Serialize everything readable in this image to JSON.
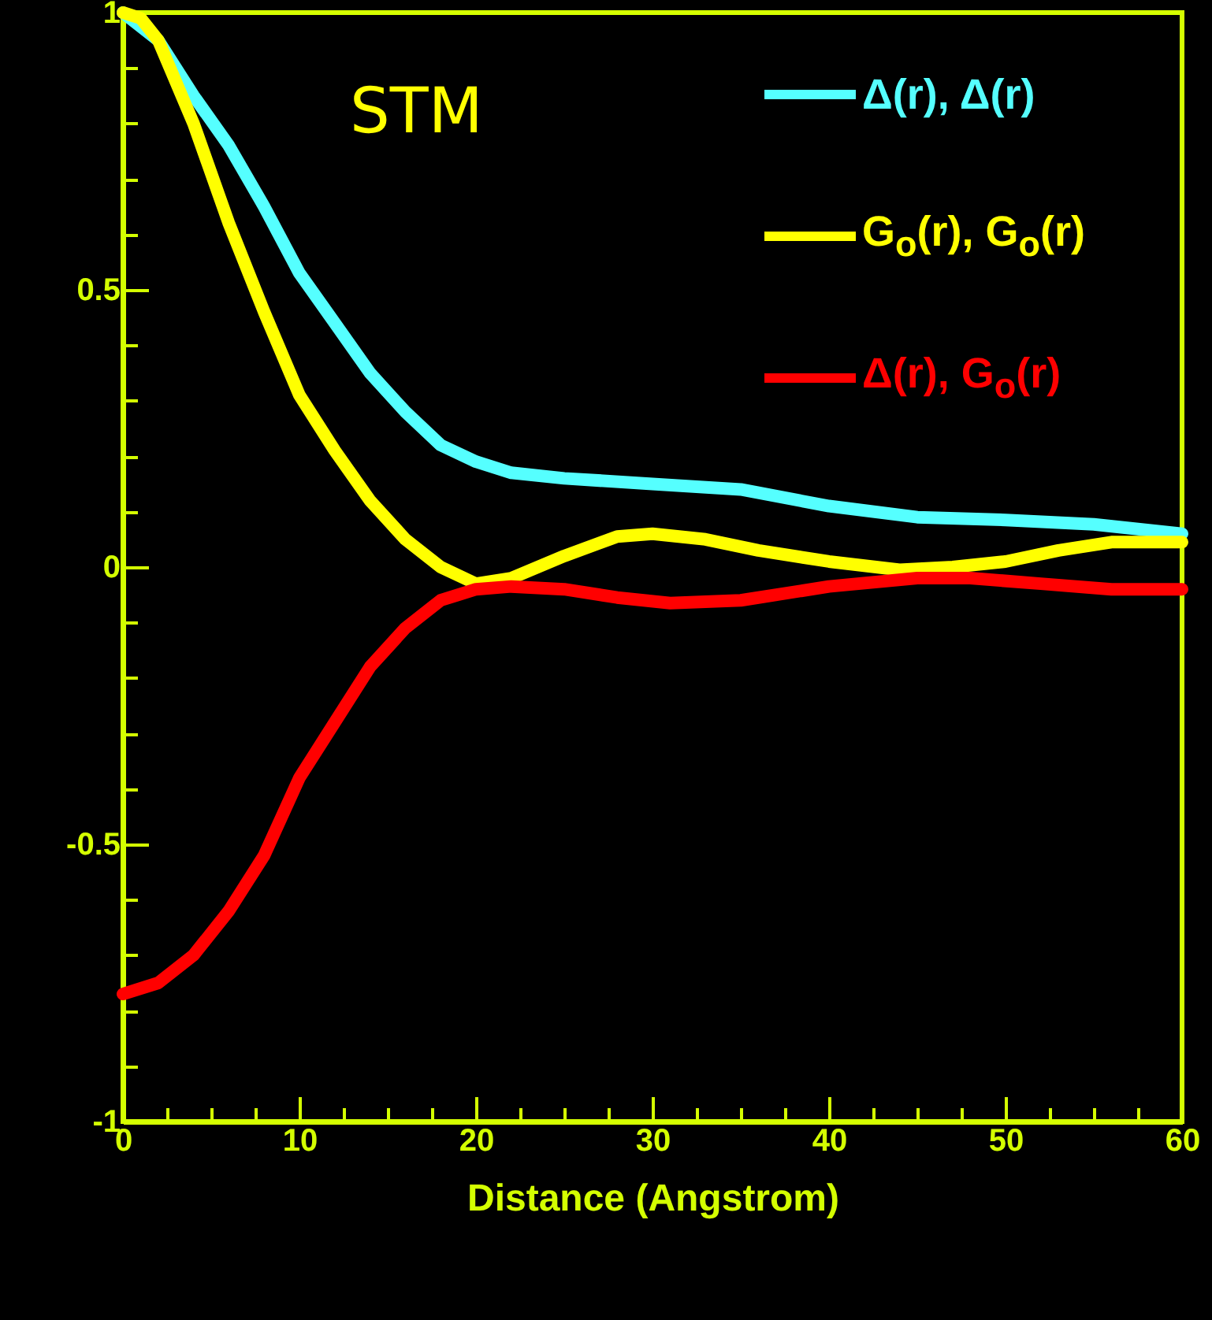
{
  "chart_data": {
    "type": "line",
    "xlabel": "Distance (Angstrom)",
    "annotations": [
      "STM"
    ],
    "xlim": [
      0,
      60
    ],
    "ylim": [
      -1,
      1
    ],
    "xticks": [
      0,
      {
        "value": 2.5,
        "label": null
      },
      {
        "value": 5,
        "label": null
      },
      {
        "value": 7.5,
        "label": null
      },
      10,
      {
        "value": 12.5,
        "label": null
      },
      {
        "value": 15,
        "label": null
      },
      {
        "value": 17.5,
        "label": null
      },
      20,
      {
        "value": 22.5,
        "label": null
      },
      {
        "value": 25,
        "label": null
      },
      {
        "value": 27.5,
        "label": null
      },
      30,
      {
        "value": 32.5,
        "label": null
      },
      {
        "value": 35,
        "label": null
      },
      {
        "value": 37.5,
        "label": null
      },
      40,
      {
        "value": 42.5,
        "label": null
      },
      {
        "value": 45,
        "label": null
      },
      {
        "value": 47.5,
        "label": null
      },
      50,
      {
        "value": 52.5,
        "label": null
      },
      {
        "value": 55,
        "label": null
      },
      {
        "value": 57.5,
        "label": null
      },
      60
    ],
    "yticks": [
      -1,
      {
        "value": -0.9,
        "label": null
      },
      {
        "value": -0.8,
        "label": null
      },
      {
        "value": -0.7,
        "label": null
      },
      {
        "value": -0.6,
        "label": null
      },
      -0.5,
      {
        "value": -0.4,
        "label": null
      },
      {
        "value": -0.3,
        "label": null
      },
      {
        "value": -0.2,
        "label": null
      },
      {
        "value": -0.1,
        "label": null
      },
      0,
      {
        "value": 0.1,
        "label": null
      },
      {
        "value": 0.2,
        "label": null
      },
      {
        "value": 0.3,
        "label": null
      },
      {
        "value": 0.4,
        "label": null
      },
      0.5,
      {
        "value": 0.6,
        "label": null
      },
      {
        "value": 0.7,
        "label": null
      },
      {
        "value": 0.8,
        "label": null
      },
      {
        "value": 0.9,
        "label": null
      },
      1
    ],
    "grid": false,
    "legend": "top right",
    "line_style": "solid",
    "marker": "none",
    "series": [
      {
        "name": "Δ(r), Δ(r)",
        "color": "#55ffff",
        "x": [
          0,
          2,
          4,
          6,
          8,
          10,
          12,
          14,
          16,
          18,
          20,
          22,
          25,
          30,
          35,
          40,
          45,
          50,
          55,
          60
        ],
        "values": [
          1.0,
          0.95,
          0.85,
          0.76,
          0.65,
          0.53,
          0.44,
          0.35,
          0.28,
          0.22,
          0.19,
          0.17,
          0.16,
          0.15,
          0.14,
          0.11,
          0.09,
          0.085,
          0.077,
          0.06
        ]
      },
      {
        "name": "G$_{o}$(r), G$_{o}$(r)",
        "color": "#ffff00",
        "x": [
          0,
          1,
          2,
          4,
          6,
          8,
          10,
          12,
          14,
          16,
          18,
          20,
          22,
          25,
          28,
          30,
          33,
          36,
          40,
          44,
          47,
          50,
          53,
          56,
          60
        ],
        "values": [
          1.0,
          0.99,
          0.95,
          0.8,
          0.62,
          0.46,
          0.31,
          0.21,
          0.12,
          0.05,
          0.0,
          -0.03,
          -0.02,
          0.02,
          0.055,
          0.06,
          0.05,
          0.03,
          0.01,
          -0.005,
          0.0,
          0.01,
          0.03,
          0.045,
          0.045
        ]
      },
      {
        "name": "Δ(r), G$_{o}$(r)",
        "color": "#ff0000",
        "x": [
          0,
          2,
          4,
          6,
          8,
          10,
          12,
          14,
          16,
          18,
          20,
          22,
          25,
          28,
          31,
          35,
          40,
          45,
          48,
          52,
          56,
          60
        ],
        "values": [
          -0.77,
          -0.75,
          -0.7,
          -0.62,
          -0.52,
          -0.38,
          -0.28,
          -0.18,
          -0.11,
          -0.06,
          -0.04,
          -0.035,
          -0.04,
          -0.055,
          -0.065,
          -0.06,
          -0.035,
          -0.02,
          -0.02,
          -0.03,
          -0.04,
          -0.04
        ]
      }
    ]
  }
}
